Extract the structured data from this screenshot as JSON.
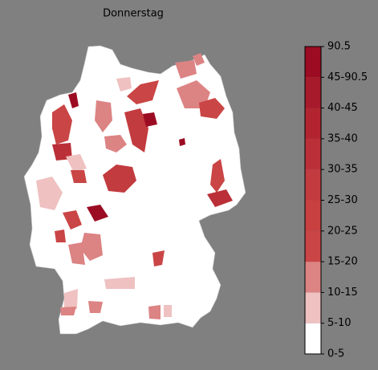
{
  "title": "Donnerstag",
  "legend": {
    "labels": [
      "0-5",
      "5-10",
      "10-15",
      "15-20",
      "20-25",
      "25-30",
      "30-35",
      "35-40",
      "40-45",
      "45-90.5",
      "90.5"
    ],
    "colors": [
      "#ffffff",
      "#efc1c1",
      "#dc8383",
      "#ca4545",
      "#c84040",
      "#c23b3f",
      "#bb3038",
      "#b2242f",
      "#a71a2b",
      "#9b0c22"
    ]
  }
}
